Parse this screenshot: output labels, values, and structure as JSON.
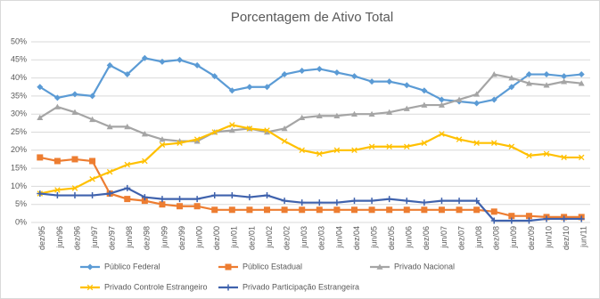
{
  "chart_data": {
    "type": "line",
    "title": "Porcentagem de Ativo Total",
    "categories": [
      "dez/95",
      "jun/96",
      "dez/96",
      "jun/97",
      "dez/97",
      "jun/98",
      "dez/98",
      "jun/99",
      "dez/99",
      "jun/00",
      "dez/00",
      "jun/01",
      "dez/01",
      "jun/02",
      "dez/02",
      "jun/03",
      "dez/03",
      "jun/04",
      "dez/04",
      "jun/05",
      "dez/05",
      "jun/06",
      "dez/06",
      "jun/07",
      "dez/07",
      "jun/08",
      "dez/08",
      "jun/09",
      "dez/09",
      "jun/10",
      "dez/10",
      "jun/11"
    ],
    "ylim": [
      0,
      50
    ],
    "yticks": [
      {
        "value": 0,
        "label": "0%"
      },
      {
        "value": 5,
        "label": "5%"
      },
      {
        "value": 10,
        "label": "10%"
      },
      {
        "value": 15,
        "label": "15%"
      },
      {
        "value": 20,
        "label": "20%"
      },
      {
        "value": 25,
        "label": "25%"
      },
      {
        "value": 30,
        "label": "30%"
      },
      {
        "value": 35,
        "label": "35%"
      },
      {
        "value": 40,
        "label": "40%"
      },
      {
        "value": 45,
        "label": "45%"
      },
      {
        "value": 50,
        "label": "50%"
      }
    ],
    "grid": true,
    "legend": "bottom",
    "series": [
      {
        "name": "Público Federal",
        "color": "#5b9bd5",
        "marker": "diamond",
        "values": [
          37.5,
          34.5,
          35.5,
          35,
          43.5,
          41,
          45.5,
          44.5,
          45,
          43.5,
          40.5,
          36.5,
          37.5,
          37.5,
          41,
          42,
          42.5,
          41.5,
          40.5,
          39,
          39,
          38,
          36.5,
          34,
          33.5,
          33,
          34,
          37.5,
          41,
          41,
          40.5,
          41
        ]
      },
      {
        "name": "Público Estadual",
        "color": "#ed7d31",
        "marker": "square",
        "values": [
          18,
          17,
          17.5,
          17,
          8,
          6.5,
          6,
          5,
          4.5,
          4.5,
          3.5,
          3.5,
          3.5,
          3.5,
          3.5,
          3.5,
          3.5,
          3.5,
          3.5,
          3.5,
          3.5,
          3.5,
          3.5,
          3.5,
          3.5,
          3.5,
          3,
          1.8,
          1.8,
          1.5,
          1.5,
          1.5
        ]
      },
      {
        "name": "Privado Nacional",
        "color": "#a5a5a5",
        "marker": "triangle",
        "values": [
          29,
          32,
          30.5,
          28.5,
          26.5,
          26.5,
          24.5,
          23,
          22.5,
          22.5,
          25,
          25.5,
          26,
          25,
          26,
          29,
          29.5,
          29.5,
          30,
          30,
          30.5,
          31.5,
          32.5,
          32.5,
          34,
          35.5,
          41,
          40,
          38.5,
          38,
          39,
          38.5
        ]
      },
      {
        "name": "Privado Controle Estrangeiro",
        "color": "#ffc000",
        "marker": "x",
        "values": [
          8,
          9,
          9.5,
          12,
          14,
          16,
          17,
          21.5,
          22,
          23,
          25,
          27,
          26,
          25.5,
          22.5,
          20,
          19,
          20,
          20,
          21,
          21,
          21,
          22,
          24.5,
          23,
          22,
          22,
          21,
          18.5,
          19,
          18,
          18
        ]
      },
      {
        "name": "Privado Participação Estrangeira",
        "color": "#3f62ad",
        "marker": "plus",
        "values": [
          8,
          7.5,
          7.5,
          7.5,
          8,
          9.5,
          7,
          6.5,
          6.5,
          6.5,
          7.5,
          7.5,
          7,
          7.5,
          6,
          5.5,
          5.5,
          5.5,
          6,
          6,
          6.5,
          6,
          5.5,
          6,
          6,
          6,
          0.5,
          0.5,
          0.5,
          1,
          1,
          1
        ]
      }
    ]
  }
}
